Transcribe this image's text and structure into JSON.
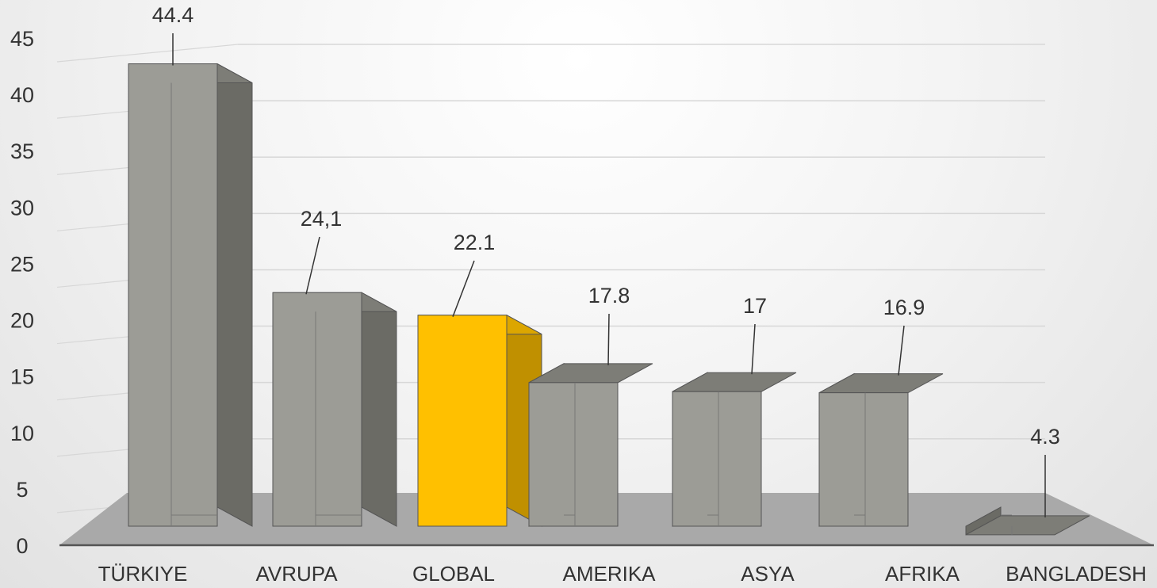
{
  "chart_data": {
    "type": "bar",
    "categories": [
      "TÜRKIYE",
      "AVRUPA",
      "GLOBAL",
      "AMERIKA",
      "ASYA",
      "AFRIKA",
      "BANGLADESH"
    ],
    "values": [
      44.4,
      24.1,
      22.1,
      17.8,
      17,
      16.9,
      4.3
    ],
    "data_labels": [
      "44.4",
      "24,1",
      "22.1",
      "17.8",
      "17",
      "16.9",
      "4.3"
    ],
    "title": "",
    "xlabel": "",
    "ylabel": "",
    "ylim": [
      0,
      45
    ],
    "yticks": [
      "0",
      "5",
      "10",
      "15",
      "20",
      "25",
      "30",
      "35",
      "40",
      "45"
    ],
    "grid": true,
    "three_d": true,
    "colors": {
      "bar": "#9c9c96",
      "bar_side": "#6b6b65",
      "bar_top": "#7d7d77",
      "highlight": "#ffc000",
      "highlight_side": "#c09000",
      "highlight_top": "#dca600",
      "floor": "#a9a9a9",
      "axis": "#555555",
      "grid": "#d7d7d7",
      "text": "#333333"
    },
    "highlight_index": 2
  }
}
